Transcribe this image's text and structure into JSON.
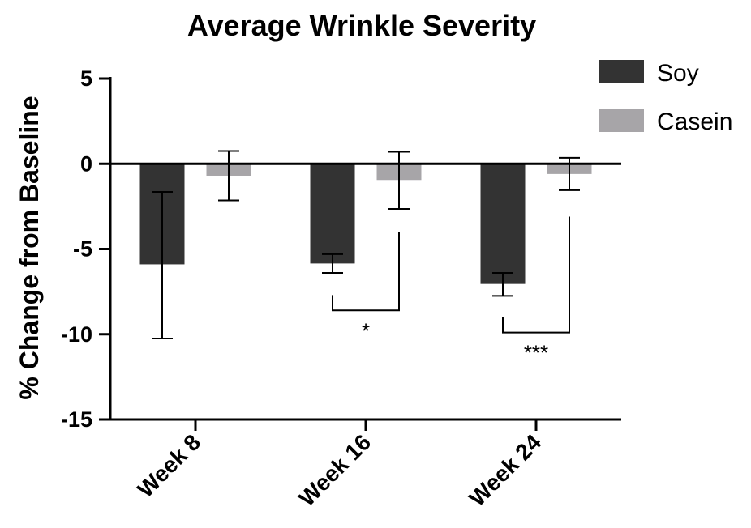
{
  "chart_data": {
    "type": "bar",
    "title": "Average Wrinkle Severity",
    "xlabel": "",
    "ylabel": "% Change from Baseline",
    "ylim": [
      -15,
      5
    ],
    "yticks": [
      5,
      0,
      -5,
      -10,
      -15
    ],
    "ytick_labels": [
      "5",
      "0",
      "-5",
      "-10",
      "-15"
    ],
    "categories": [
      "Week 8",
      "Week 16",
      "Week 24"
    ],
    "series": [
      {
        "name": "Soy",
        "color": "#333333",
        "values": [
          -5.9,
          -5.85,
          -7.05
        ],
        "err_low": [
          -10.25,
          -6.4,
          -7.75
        ],
        "err_high": [
          -1.65,
          -5.3,
          -6.4
        ]
      },
      {
        "name": "Casein",
        "color": "#a7a5a8",
        "values": [
          -0.7,
          -0.95,
          -0.6
        ],
        "err_low": [
          -2.15,
          -2.65,
          -1.55
        ],
        "err_high": [
          0.75,
          0.7,
          0.35
        ]
      }
    ],
    "significance": [
      {
        "category": "Week 16",
        "label": "*",
        "y_top": -4.0,
        "y_bottom": -8.6
      },
      {
        "category": "Week 24",
        "label": "***",
        "y_top": -3.1,
        "y_bottom": -9.9
      }
    ],
    "legend_position": "top-right",
    "grid": false
  }
}
